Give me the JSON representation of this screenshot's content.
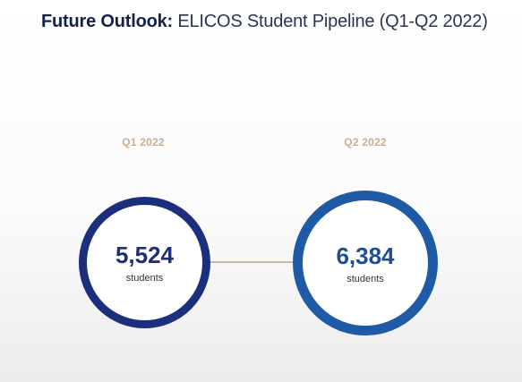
{
  "title": {
    "bold": "Future Outlook:",
    "rest": "ELICOS Student Pipeline (Q1-Q2 2022)"
  },
  "quarters": [
    {
      "label": "Q1 2022",
      "value": "5,524",
      "unit": "students"
    },
    {
      "label": "Q2 2022",
      "value": "6,384",
      "unit": "students"
    }
  ],
  "colors": {
    "title": "#14214a",
    "quarter_label": "#c9ad90",
    "q1_ring": "#1c2f7c",
    "q2_ring": "#1f5aa6",
    "connector": "#cdb8a3"
  }
}
